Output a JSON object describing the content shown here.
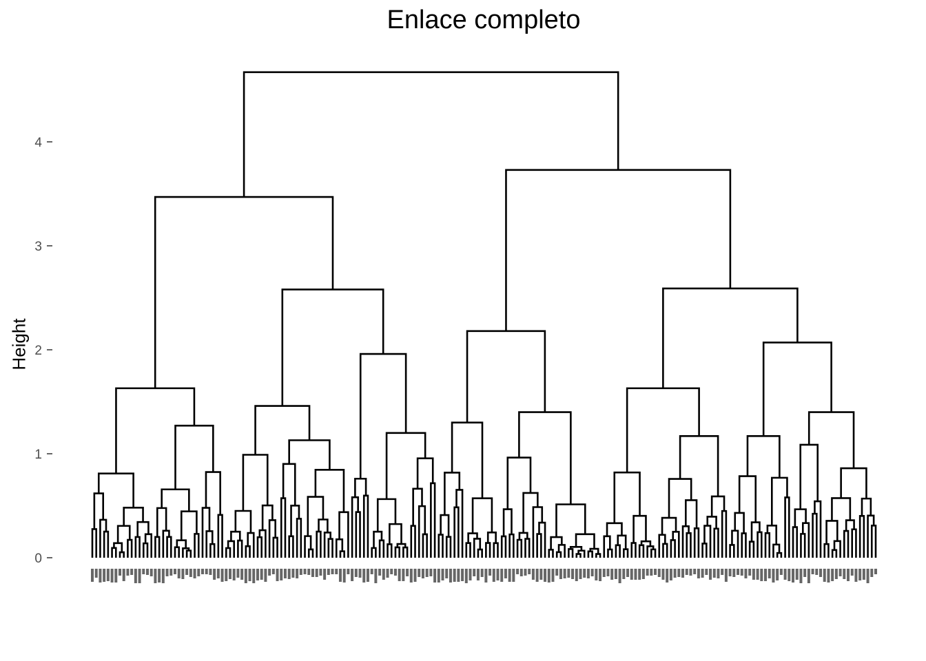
{
  "chart_data": {
    "type": "dendrogram",
    "title": "Enlace completo",
    "xlabel": "",
    "ylabel": "Height",
    "ylim": [
      0,
      4.8
    ],
    "yticks": [
      0,
      1,
      2,
      3,
      4
    ],
    "grid": false,
    "n_leaves": 200,
    "linkage": "complete",
    "merge_heights": {
      "root": 4.67,
      "left_cluster": 3.47,
      "right_cluster": 3.73,
      "left_subclusters": [
        1.63,
        2.58
      ],
      "right_subclusters": [
        2.18,
        2.59
      ],
      "second_level": [
        0.81,
        1.27,
        1.46,
        1.96,
        1.3,
        1.4,
        1.63,
        2.07
      ]
    },
    "leaf_labels_note": ""
  }
}
